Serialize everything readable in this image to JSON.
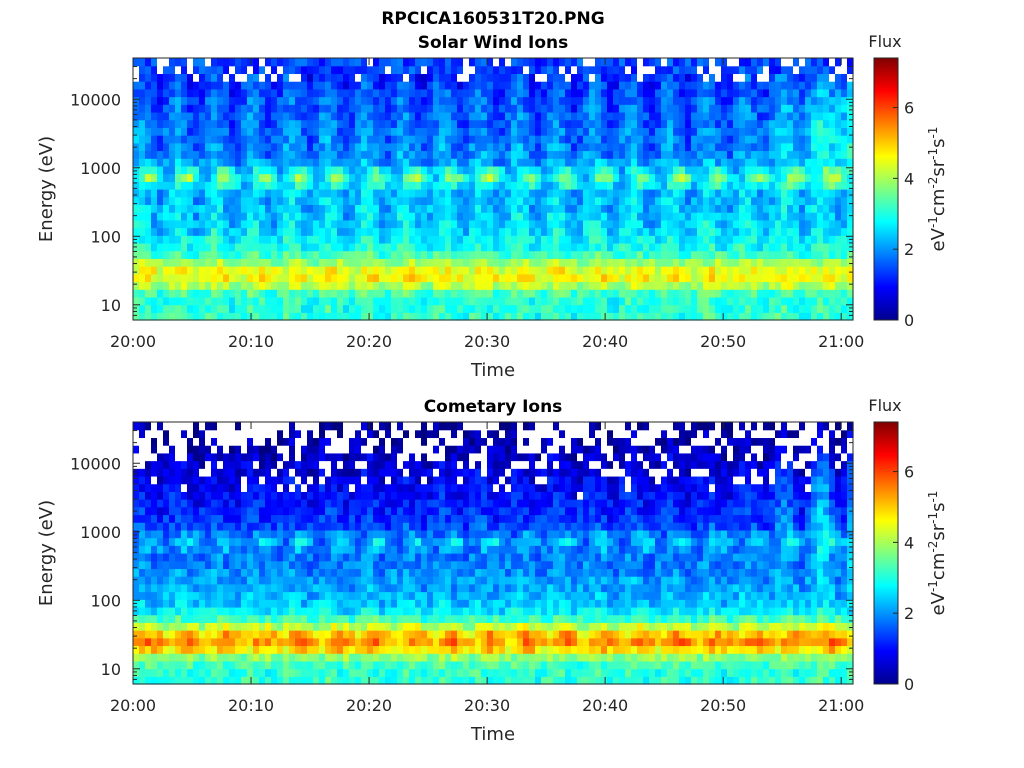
{
  "figure_title": "RPCICA160531T20.PNG",
  "colors": {
    "colormap": "jet",
    "missing": "#ffffff",
    "axis": "#262626"
  },
  "chart_data": [
    {
      "type": "heatmap",
      "title": "Solar Wind Ions",
      "xlabel": "Time",
      "ylabel": "Energy (eV)",
      "x_range": [
        "20:00",
        "21:01"
      ],
      "x_ticks": [
        "20:00",
        "20:10",
        "20:20",
        "20:30",
        "20:40",
        "20:50",
        "21:00"
      ],
      "y_scale": "log",
      "y_range": [
        6,
        40000
      ],
      "y_ticks": [
        10,
        100,
        1000,
        10000
      ],
      "y_tick_labels": [
        "10",
        "100",
        "1000",
        "10000"
      ],
      "colorbar": {
        "title": "Flux",
        "label": "eV-1cm-2sr-1s-1",
        "range": [
          0,
          7.4
        ],
        "ticks": [
          0,
          2,
          4,
          6
        ],
        "tick_labels": [
          "0",
          "2",
          "4",
          "6"
        ]
      },
      "features": {
        "cycle_count": 19,
        "low_energy_band_eV": [
          20,
          40
        ],
        "low_energy_band_peak": 4.9,
        "mid_band_eV": [
          600,
          900
        ],
        "mid_band_peak": 4.5
      }
    },
    {
      "type": "heatmap",
      "title": "Cometary Ions",
      "xlabel": "Time",
      "ylabel": "Energy (eV)",
      "x_range": [
        "20:00",
        "21:01"
      ],
      "x_ticks": [
        "20:00",
        "20:10",
        "20:20",
        "20:30",
        "20:40",
        "20:50",
        "21:00"
      ],
      "y_scale": "log",
      "y_range": [
        6,
        40000
      ],
      "y_ticks": [
        10,
        100,
        1000,
        10000
      ],
      "y_tick_labels": [
        "10",
        "100",
        "1000",
        "10000"
      ],
      "colorbar": {
        "title": "Flux",
        "label": "eV-1cm-2sr-1s-1",
        "range": [
          0,
          7.4
        ],
        "ticks": [
          0,
          2,
          4,
          6
        ],
        "tick_labels": [
          "0",
          "2",
          "4",
          "6"
        ]
      },
      "features": {
        "cycle_count": 19,
        "low_energy_band_eV": [
          18,
          40
        ],
        "low_energy_band_peak": 6.0,
        "mid_band_eV": [
          600,
          900
        ],
        "mid_band_peak": 2.6
      }
    }
  ]
}
